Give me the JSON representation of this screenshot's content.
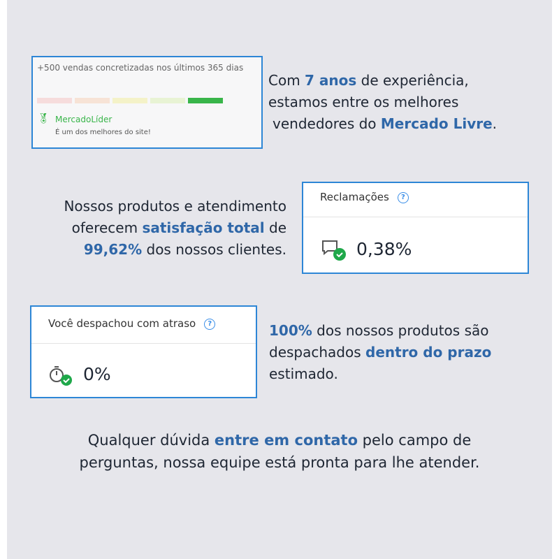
{
  "seller_card": {
    "sales": "+500 vendas concretizadas nos últimos 365 dias",
    "badge": "MercadoLíder",
    "badge_desc": "É um dos melhores do site!",
    "reputation_level": 5,
    "colors": [
      "#f6dcdc",
      "#f7e3d6",
      "#f4f2c8",
      "#e8f3d4",
      "#39b54a"
    ]
  },
  "block1": {
    "t1": "Com ",
    "h1": "7 anos",
    "t2": " de experiência,",
    "t3": "estamos entre os melhores",
    "t4": "vendedores do ",
    "h2": "Mercado Livre",
    "t5": "."
  },
  "block2": {
    "t1": "Nossos produtos e atendimento",
    "t2": "oferecem ",
    "h1": "satisfação total",
    "t3": " de",
    "h2": "99,62%",
    "t4": " dos nossos clientes."
  },
  "complaints": {
    "title": "Reclamações",
    "help": "?",
    "value": "0,38%"
  },
  "delay": {
    "title": "Você despachou com atraso",
    "help": "?",
    "value": "0%"
  },
  "block3": {
    "h1": "100%",
    "t1": " dos nossos produtos são",
    "t2": "despachados ",
    "h2": "dentro do prazo",
    "t3": "estimado."
  },
  "footer": {
    "t1": "Qualquer dúvida ",
    "h1": "entre em contato",
    "t2": " pelo campo de",
    "t3": "perguntas, nossa equipe está pronta para lhe atender."
  }
}
